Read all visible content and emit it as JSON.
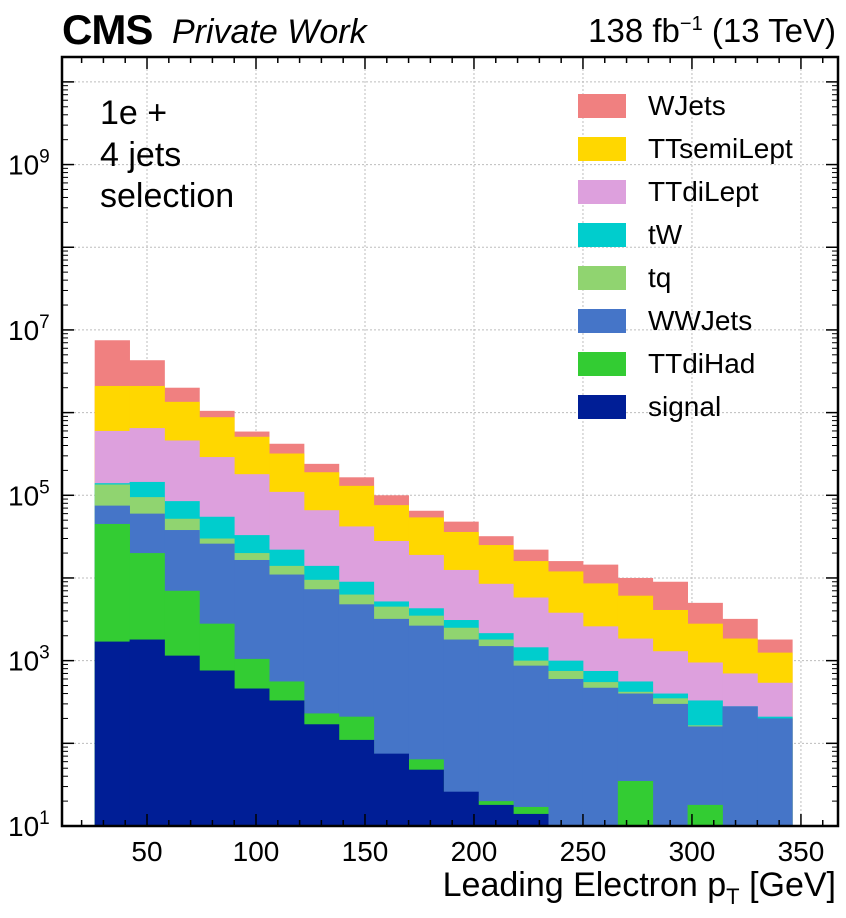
{
  "header": {
    "experiment": "CMS",
    "subtitle": "Private Work",
    "lumi": "138 fb",
    "lumi_exp": "−1",
    "energy": " (13 TeV)"
  },
  "selection": [
    "1e +",
    "4 jets",
    "selection"
  ],
  "axes": {
    "xlabel_main": "Leading Electron p",
    "xlabel_sub": "T",
    "xlabel_unit": " [GeV]"
  },
  "chart_data": {
    "type": "bar",
    "stacked": true,
    "ylog": true,
    "xlim": [
      11,
      367
    ],
    "ylim": [
      10,
      20000000000.0
    ],
    "x_ticks": [
      50,
      100,
      150,
      200,
      250,
      300,
      350
    ],
    "y_ticks": [
      {
        "value": 10,
        "mant": "10",
        "exp": "1"
      },
      {
        "value": 1000,
        "mant": "10",
        "exp": "3"
      },
      {
        "value": 100000,
        "mant": "10",
        "exp": "5"
      },
      {
        "value": 10000000,
        "mant": "10",
        "exp": "7"
      },
      {
        "value": 1000000000,
        "mant": "10",
        "exp": "9"
      }
    ],
    "grid": true,
    "legend_position": "top-right",
    "bin_edges": [
      26,
      42,
      58,
      74,
      90,
      106,
      122,
      138,
      154,
      170,
      186,
      202,
      218,
      234,
      250,
      266,
      282,
      298,
      314,
      330,
      346
    ],
    "stack_order": [
      "signal",
      "TTdiHad",
      "WWJets",
      "tq",
      "tW",
      "TTdiLept",
      "TTsemiLept",
      "WJets"
    ],
    "series": [
      {
        "name": "WJets",
        "color": "#f08080",
        "tops": [
          7500000,
          4300000,
          2000000,
          1050000,
          590000,
          420000,
          240000,
          165000,
          100000,
          65000,
          48000,
          32000,
          22000,
          16000,
          14500,
          10000,
          9000,
          5000,
          3200,
          1800
        ]
      },
      {
        "name": "TTsemiLept",
        "color": "#ffd700",
        "tops": [
          2100000,
          2100000,
          1350000,
          880000,
          510000,
          320000,
          190000,
          130000,
          76000,
          54000,
          36000,
          25000,
          16000,
          12000,
          8600,
          6100,
          4100,
          2800,
          1850,
          1250
        ]
      },
      {
        "name": "TTdiLept",
        "color": "#dda0dd",
        "tops": [
          600000,
          650000,
          460000,
          290000,
          180000,
          110000,
          66000,
          42000,
          28000,
          19000,
          12500,
          8500,
          5800,
          3800,
          2600,
          1850,
          1300,
          950,
          700,
          540
        ]
      },
      {
        "name": "tW",
        "color": "#00cdcd",
        "tops": [
          140000,
          145000,
          85000,
          55000,
          33000,
          22000,
          14000,
          9000,
          5200,
          4300,
          3100,
          2150,
          1450,
          1000,
          750,
          560,
          400,
          330,
          280,
          210
        ]
      },
      {
        "name": "tq",
        "color": "#90d470",
        "tops": [
          135000,
          95000,
          52000,
          30000,
          20000,
          14000,
          9500,
          6300,
          4500,
          3500,
          2500,
          1800,
          1000,
          750,
          550,
          420,
          350,
          165,
          130,
          100
        ]
      },
      {
        "name": "WWJets",
        "color": "#4575c8",
        "tops": [
          75000,
          60000,
          38000,
          26000,
          16500,
          11000,
          7300,
          4800,
          3200,
          2650,
          1800,
          1500,
          870,
          600,
          470,
          400,
          300,
          160,
          280,
          200
        ]
      },
      {
        "name": "TTdiHad",
        "color": "#33cc33",
        "tops": [
          45000,
          20000,
          7000,
          2800,
          1050,
          560,
          230,
          210,
          70,
          64,
          23,
          20,
          17,
          10,
          10,
          35,
          10,
          18,
          10,
          10
        ]
      },
      {
        "name": "signal",
        "color": "#001e96",
        "tops": [
          1700,
          1800,
          1150,
          760,
          460,
          330,
          170,
          110,
          75,
          48,
          26,
          18,
          14,
          10,
          10,
          10,
          10,
          10,
          10,
          10
        ]
      }
    ]
  }
}
